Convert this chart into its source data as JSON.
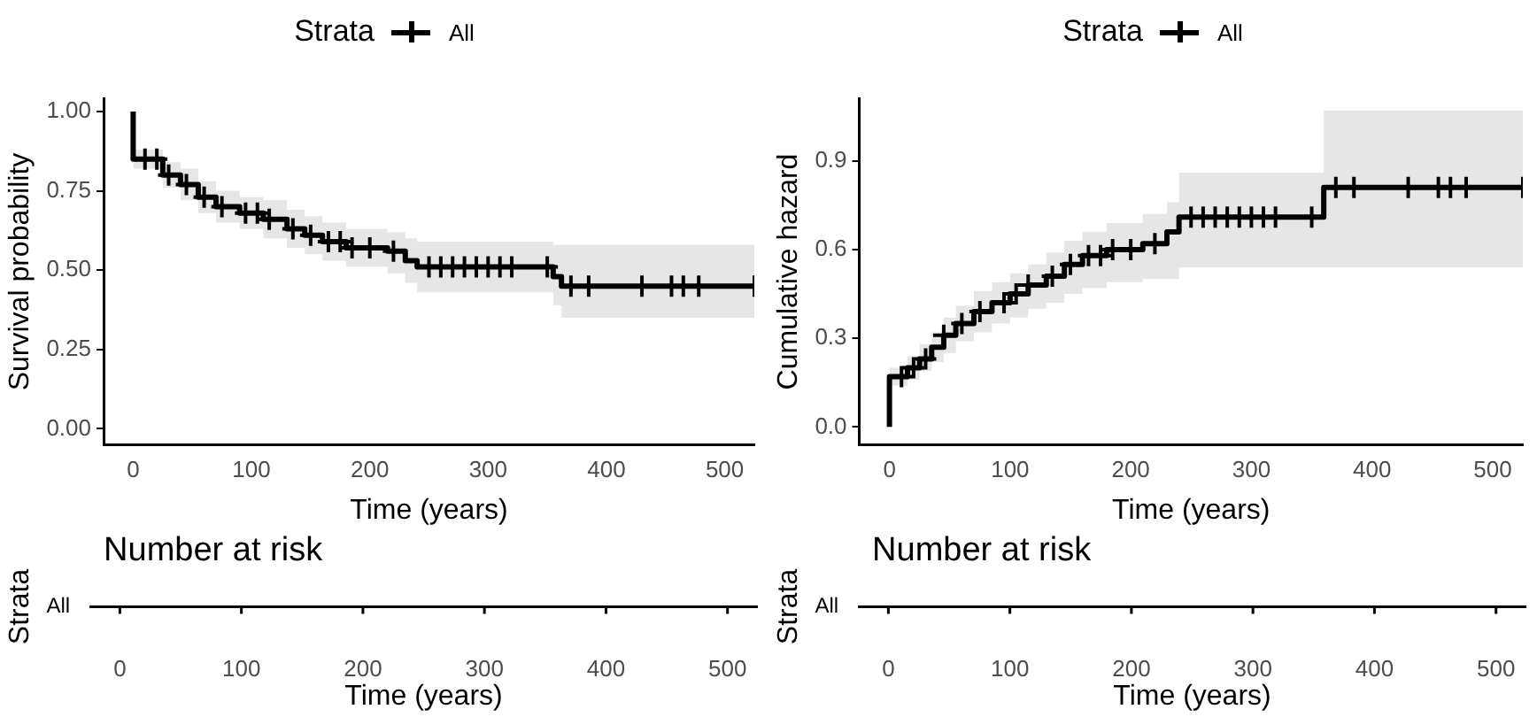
{
  "chart_data": [
    {
      "type": "step",
      "xlabel": "Time (years)",
      "ylabel": "Survival probability",
      "legend": "top",
      "legend_title": "Strata",
      "line_style": "solid",
      "xlim": [
        -25,
        525
      ],
      "xticks": [
        0,
        100,
        200,
        300,
        400,
        500
      ],
      "ylim": [
        -0.05,
        1.04
      ],
      "yticks": [
        {
          "value": 0,
          "label": "0.00"
        },
        0.25,
        {
          "value": 0.5,
          "label": "0.50"
        },
        0.75,
        {
          "value": 1,
          "label": "1.00"
        }
      ],
      "grid": false,
      "series": [
        {
          "name": "All",
          "color": "#000000",
          "x": [
            0,
            0,
            25,
            40,
            55,
            70,
            90,
            110,
            130,
            145,
            160,
            180,
            215,
            230,
            240,
            355,
            362,
            525
          ],
          "values": [
            1.0,
            0.85,
            0.8,
            0.77,
            0.73,
            0.7,
            0.68,
            0.66,
            0.63,
            0.61,
            0.59,
            0.57,
            0.56,
            0.53,
            0.51,
            0.48,
            0.45,
            0.45
          ],
          "lower": [
            1.0,
            0.82,
            0.76,
            0.72,
            0.68,
            0.65,
            0.63,
            0.6,
            0.57,
            0.55,
            0.53,
            0.51,
            0.49,
            0.46,
            0.43,
            0.39,
            0.35,
            0.35
          ],
          "upper": [
            1.0,
            0.88,
            0.84,
            0.82,
            0.78,
            0.75,
            0.73,
            0.72,
            0.69,
            0.67,
            0.65,
            0.63,
            0.62,
            0.6,
            0.59,
            0.58,
            0.58,
            0.58
          ]
        },
        {
          "type": "scatter",
          "marker": "cross",
          "color": "#000000",
          "x": [
            10,
            20,
            30,
            45,
            60,
            75,
            95,
            105,
            115,
            135,
            150,
            165,
            175,
            185,
            200,
            220,
            250,
            260,
            270,
            280,
            290,
            300,
            310,
            320,
            350,
            370,
            385,
            430,
            455,
            465,
            478,
            525
          ],
          "values": [
            0.85,
            0.85,
            0.8,
            0.77,
            0.73,
            0.7,
            0.68,
            0.68,
            0.66,
            0.63,
            0.61,
            0.59,
            0.59,
            0.57,
            0.57,
            0.56,
            0.51,
            0.51,
            0.51,
            0.51,
            0.51,
            0.51,
            0.51,
            0.51,
            0.51,
            0.45,
            0.45,
            0.45,
            0.45,
            0.45,
            0.45,
            0.45
          ]
        }
      ]
    },
    {
      "type": "step",
      "xlabel": "Time (years)",
      "ylabel": "Cumulative hazard",
      "legend": "top",
      "legend_title": "Strata",
      "line_style": "solid",
      "xlim": [
        -25,
        525
      ],
      "xticks": [
        0,
        100,
        200,
        300,
        400,
        500
      ],
      "ylim": [
        -0.06,
        1.11
      ],
      "yticks": [
        {
          "value": 0,
          "label": "0.0"
        },
        0.3,
        0.6,
        0.9
      ],
      "grid": false,
      "series": [
        {
          "name": "All",
          "color": "#000000",
          "x": [
            0,
            0,
            15,
            25,
            35,
            45,
            55,
            70,
            85,
            100,
            115,
            130,
            145,
            160,
            180,
            210,
            230,
            240,
            360,
            525
          ],
          "values": [
            0.0,
            0.17,
            0.2,
            0.23,
            0.27,
            0.31,
            0.35,
            0.39,
            0.42,
            0.45,
            0.48,
            0.51,
            0.55,
            0.58,
            0.6,
            0.62,
            0.66,
            0.71,
            0.81,
            0.81
          ],
          "lower": [
            0.0,
            0.14,
            0.16,
            0.19,
            0.22,
            0.25,
            0.29,
            0.32,
            0.35,
            0.37,
            0.4,
            0.42,
            0.45,
            0.47,
            0.49,
            0.5,
            0.5,
            0.54,
            0.54,
            0.54
          ],
          "upper": [
            0.0,
            0.2,
            0.24,
            0.28,
            0.32,
            0.37,
            0.41,
            0.46,
            0.49,
            0.52,
            0.55,
            0.59,
            0.63,
            0.66,
            0.69,
            0.72,
            0.76,
            0.86,
            1.07,
            1.07
          ]
        },
        {
          "type": "scatter",
          "marker": "cross",
          "color": "#000000",
          "x": [
            10,
            20,
            30,
            45,
            60,
            75,
            95,
            105,
            115,
            135,
            150,
            165,
            175,
            185,
            200,
            220,
            250,
            260,
            270,
            280,
            290,
            300,
            310,
            320,
            350,
            370,
            385,
            430,
            455,
            465,
            478,
            525
          ],
          "values": [
            0.17,
            0.2,
            0.23,
            0.31,
            0.35,
            0.39,
            0.42,
            0.45,
            0.48,
            0.51,
            0.55,
            0.58,
            0.58,
            0.6,
            0.6,
            0.62,
            0.71,
            0.71,
            0.71,
            0.71,
            0.71,
            0.71,
            0.71,
            0.71,
            0.71,
            0.81,
            0.81,
            0.81,
            0.81,
            0.81,
            0.81,
            0.81
          ]
        }
      ]
    },
    {
      "type": "bar",
      "orientation": "horizontal",
      "title": "Number at risk",
      "xlabel": "Time (years)",
      "ylabel": "Strata",
      "categories": [
        "All"
      ],
      "values": [
        null
      ],
      "xlim": [
        -25,
        525
      ],
      "xticks": [
        0,
        100,
        200,
        300,
        400,
        500
      ]
    },
    {
      "type": "bar",
      "orientation": "horizontal",
      "title": "Number at risk",
      "xlabel": "Time (years)",
      "ylabel": "Strata",
      "categories": [
        "All"
      ],
      "values": [
        null
      ],
      "xlim": [
        -25,
        525
      ],
      "xticks": [
        0,
        100,
        200,
        300,
        400,
        500
      ]
    }
  ]
}
